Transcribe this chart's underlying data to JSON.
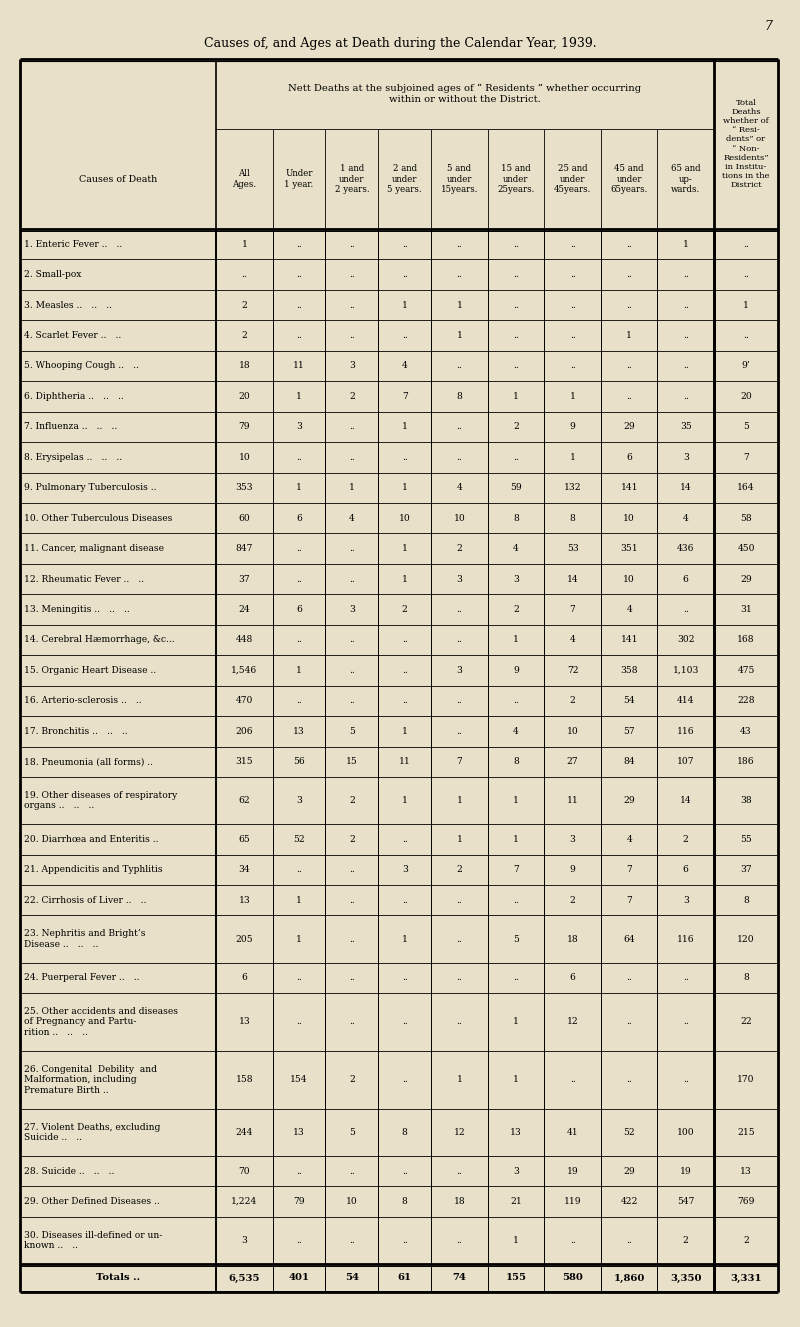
{
  "page_number": "7",
  "title": "Causes of, and Ages at Death during the Calendar Year, 1939.",
  "bg_color": "#e8e0c8",
  "rows": [
    {
      "num": "1.",
      "cause": "Enteric Fever",
      "dots": " .. ..",
      "all": "1",
      "u1": "..",
      "1u2": "..",
      "2u5": "..",
      "5u15": "..",
      "15u25": "..",
      "25u45": "..",
      "45u65": "..",
      "65p": "1",
      "total": ".."
    },
    {
      "num": "2.",
      "cause": "Small-pox",
      "dots": "",
      "all": "..",
      "u1": "..",
      "1u2": "..",
      "2u5": "..",
      "5u15": "..",
      "15u25": "..",
      "25u45": "..",
      "45u65": "..",
      "65p": "..",
      "total": ".."
    },
    {
      "num": "3.",
      "cause": "Measles",
      "dots": " .. .. ..",
      "all": "2",
      "u1": "..",
      "1u2": "..",
      "2u5": "1",
      "5u15": "1",
      "15u25": "..",
      "25u45": "..",
      "45u65": "..",
      "65p": "..",
      "total": "1"
    },
    {
      "num": "4.",
      "cause": "Scarlet Fever",
      "dots": " .. ..",
      "all": "2",
      "u1": "..",
      "1u2": "..",
      "2u5": "..",
      "5u15": "1",
      "15u25": "..",
      "25u45": "..",
      "45u65": "1",
      "65p": "..",
      "total": ".."
    },
    {
      "num": "5.",
      "cause": "Whooping Cough",
      "dots": " .. ..",
      "all": "18",
      "u1": "11",
      "1u2": "3",
      "2u5": "4",
      "5u15": "..",
      "15u25": "..",
      "25u45": "..",
      "45u65": "..",
      "65p": "..",
      "total": "9’"
    },
    {
      "num": "6.",
      "cause": "Diphtheria",
      "dots": " .. .. ..",
      "all": "20",
      "u1": "1",
      "1u2": "2",
      "2u5": "7",
      "5u15": "8",
      "15u25": "1",
      "25u45": "1",
      "45u65": "..",
      "65p": "..",
      "total": "20"
    },
    {
      "num": "7.",
      "cause": "Influenza",
      "dots": " .. .. ..",
      "all": "79",
      "u1": "3",
      "1u2": "..",
      "2u5": "1",
      "5u15": "..",
      "15u25": "2",
      "25u45": "9",
      "45u65": "29",
      "65p": "35",
      "total": "5"
    },
    {
      "num": "8.",
      "cause": "Erysipelas",
      "dots": " .. .. ..",
      "all": "10",
      "u1": "..",
      "1u2": "..",
      "2u5": "..",
      "5u15": "..",
      "15u25": "..",
      "25u45": "1",
      "45u65": "6",
      "65p": "3",
      "total": "7"
    },
    {
      "num": "9.",
      "cause": "Pulmonary Tuberculosis",
      "dots": " ..",
      "all": "353",
      "u1": "1",
      "1u2": "1",
      "2u5": "1",
      "5u15": "4",
      "15u25": "59",
      "25u45": "132",
      "45u65": "141",
      "65p": "14",
      "total": "164"
    },
    {
      "num": "10.",
      "cause": "Other Tuberculous Diseases",
      "dots": "",
      "all": "60",
      "u1": "6",
      "1u2": "4",
      "2u5": "10",
      "5u15": "10",
      "15u25": "8",
      "25u45": "8",
      "45u65": "10",
      "65p": "4",
      "total": "58"
    },
    {
      "num": "11.",
      "cause": "Cancer, malignant disease",
      "dots": "",
      "all": "847",
      "u1": "..",
      "1u2": "..",
      "2u5": "1",
      "5u15": "2",
      "15u25": "4",
      "25u45": "53",
      "45u65": "351",
      "65p": "436",
      "total": "450"
    },
    {
      "num": "12.",
      "cause": "Rheumatic Fever",
      "dots": " .. ..",
      "all": "37",
      "u1": "..",
      "1u2": "..",
      "2u5": "1",
      "5u15": "3",
      "15u25": "3",
      "25u45": "14",
      "45u65": "10",
      "65p": "6",
      "total": "29"
    },
    {
      "num": "13.",
      "cause": "Meningitis",
      "dots": " .. .. ..",
      "all": "24",
      "u1": "6",
      "1u2": "3",
      "2u5": "2",
      "5u15": "..",
      "15u25": "2",
      "25u45": "7",
      "45u65": "4",
      "65p": "..",
      "total": "31"
    },
    {
      "num": "14.",
      "cause": "Cerebral Hæmorrhage, &c...",
      "dots": "",
      "all": "448",
      "u1": "..",
      "1u2": "..",
      "2u5": "..",
      "5u15": "..",
      "15u25": "1",
      "25u45": "4",
      "45u65": "141",
      "65p": "302",
      "total": "168"
    },
    {
      "num": "15.",
      "cause": "Organic Heart Disease",
      "dots": " ..",
      "all": "1,546",
      "u1": "1",
      "1u2": "..",
      "2u5": "..",
      "5u15": "3",
      "15u25": "9",
      "25u45": "72",
      "45u65": "358",
      "65p": "1,103",
      "total": "475"
    },
    {
      "num": "16.",
      "cause": "Arterio-sclerosis",
      "dots": " .. ..",
      "all": "470",
      "u1": "..",
      "1u2": "..",
      "2u5": "..",
      "5u15": "..",
      "15u25": "..",
      "25u45": "2",
      "45u65": "54",
      "65p": "414",
      "total": "228"
    },
    {
      "num": "17.",
      "cause": "Bronchitis",
      "dots": " .. .. ..",
      "all": "206",
      "u1": "13",
      "1u2": "5",
      "2u5": "1",
      "5u15": "..",
      "15u25": "4",
      "25u45": "10",
      "45u65": "57",
      "65p": "116",
      "total": "43"
    },
    {
      "num": "18.",
      "cause": "Pneumonia (all forms)",
      "dots": " ..",
      "all": "315",
      "u1": "56",
      "1u2": "15",
      "2u5": "11",
      "5u15": "7",
      "15u25": "8",
      "25u45": "27",
      "45u65": "84",
      "65p": "107",
      "total": "186"
    },
    {
      "num": "19.",
      "cause": "Other diseases of respiratory\norgans",
      "dots": " .. .. ..",
      "all": "62",
      "u1": "3",
      "1u2": "2",
      "2u5": "1",
      "5u15": "1",
      "15u25": "1",
      "25u45": "11",
      "45u65": "29",
      "65p": "14",
      "total": "38"
    },
    {
      "num": "20.",
      "cause": "Diarrhœa and Enteritis",
      "dots": " ..",
      "all": "65",
      "u1": "52",
      "1u2": "2",
      "2u5": "..",
      "5u15": "1",
      "15u25": "1",
      "25u45": "3",
      "45u65": "4",
      "65p": "2",
      "total": "55"
    },
    {
      "num": "21.",
      "cause": "Appendicitis and Typhlitis",
      "dots": "",
      "all": "34",
      "u1": "..",
      "1u2": "..",
      "2u5": "3",
      "5u15": "2",
      "15u25": "7",
      "25u45": "9",
      "45u65": "7",
      "65p": "6",
      "total": "37"
    },
    {
      "num": "22.",
      "cause": "Cirrhosis of Liver",
      "dots": " .. ..",
      "all": "13",
      "u1": "1",
      "1u2": "..",
      "2u5": "..",
      "5u15": "..",
      "15u25": "..",
      "25u45": "2",
      "45u65": "7",
      "65p": "3",
      "total": "8"
    },
    {
      "num": "23.",
      "cause": "Nephritis and Bright’s\nDisease",
      "dots": " .. .. ..",
      "all": "205",
      "u1": "1",
      "1u2": "..",
      "2u5": "1",
      "5u15": "..",
      "15u25": "5",
      "25u45": "18",
      "45u65": "64",
      "65p": "116",
      "total": "120"
    },
    {
      "num": "24.",
      "cause": "Puerperal Fever",
      "dots": " .. ..",
      "all": "6",
      "u1": "..",
      "1u2": "..",
      "2u5": "..",
      "5u15": "..",
      "15u25": "..",
      "25u45": "6",
      "45u65": "..",
      "65p": "..",
      "total": "8"
    },
    {
      "num": "25.",
      "cause": "Other accidents and diseases\nof Pregnancy and Partu-\nrition",
      "dots": " .. .. ..",
      "all": "13",
      "u1": "..",
      "1u2": "..",
      "2u5": "..",
      "5u15": "..",
      "15u25": "1",
      "25u45": "12",
      "45u65": "..",
      "65p": "..",
      "total": "22"
    },
    {
      "num": "26.",
      "cause": "Congenital  Debility  and\nMalformation, including\nPremature Birth",
      "dots": " ..",
      "all": "158",
      "u1": "154",
      "1u2": "2",
      "2u5": "..",
      "5u15": "1",
      "15u25": "1",
      "25u45": "..",
      "45u65": "..",
      "65p": "..",
      "total": "170"
    },
    {
      "num": "27.",
      "cause": "Violent Deaths, excluding\nSuicide",
      "dots": " .. ..",
      "all": "244",
      "u1": "13",
      "1u2": "5",
      "2u5": "8",
      "5u15": "12",
      "15u25": "13",
      "25u45": "41",
      "45u65": "52",
      "65p": "100",
      "total": "215"
    },
    {
      "num": "28.",
      "cause": "Suicide",
      "dots": " .. .. ..",
      "all": "70",
      "u1": "..",
      "1u2": "..",
      "2u5": "..",
      "5u15": "..",
      "15u25": "3",
      "25u45": "19",
      "45u65": "29",
      "65p": "19",
      "total": "13"
    },
    {
      "num": "29.",
      "cause": "Other Defined Diseases",
      "dots": " ..",
      "all": "1,224",
      "u1": "79",
      "1u2": "10",
      "2u5": "8",
      "5u15": "18",
      "15u25": "21",
      "25u45": "119",
      "45u65": "422",
      "65p": "547",
      "total": "769"
    },
    {
      "num": "30.",
      "cause": "Diseases ill-defined or un-\nknown",
      "dots": " .. ..",
      "all": "3",
      "u1": "..",
      "1u2": "..",
      "2u5": "..",
      "5u15": "..",
      "15u25": "1",
      "25u45": "..",
      "45u65": "..",
      "65p": "2",
      "total": "2"
    }
  ],
  "totals_label": "Totals ..",
  "totals": [
    "6,535",
    "401",
    "54",
    "61",
    "74",
    "155",
    "580",
    "1,860",
    "3,350",
    "3,331"
  ],
  "col_headers": [
    "All\nAges.",
    "Under\n1 year.",
    "1 and\nunder\n2 years.",
    "2 and\nunder\n5 years.",
    "5 and\nunder\n15years.",
    "15 and\nunder\n25years.",
    "25 and\nunder\n45years.",
    "45 and\nunder\n65years.",
    "65 and\nup-\nwards."
  ]
}
